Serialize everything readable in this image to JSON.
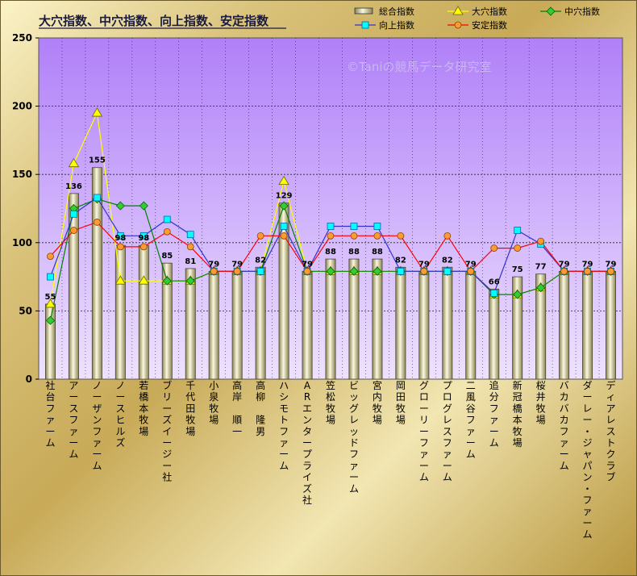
{
  "chart_data": {
    "type": "bar",
    "title": "大穴指数、中穴指数、向上指数、安定指数",
    "watermark": "©Taniの競馬データ研究室",
    "ylim": [
      0,
      250
    ],
    "yticks": [
      0,
      50,
      100,
      150,
      200,
      250
    ],
    "grid": true,
    "legend_position": "top-right",
    "categories": [
      "社台ファーム",
      "アースファーム",
      "ノーザンファーム",
      "ノースヒルズ",
      "若橋本牧場",
      "ブリーズイージー社",
      "千代田牧場",
      "小泉牧場",
      "高岸　順一",
      "高柳　隆男",
      "ハシモトファーム",
      "ARエンタープライズ社",
      "笠松牧場",
      "ビッグレッドファーム",
      "宮内牧場",
      "岡田牧場",
      "グローリーファーム",
      "プログレスファーム",
      "二風谷ファーム",
      "追分ファーム",
      "新冠橋本牧場",
      "桜井牧場",
      "バカバカファーム",
      "ダーレー・ジャパン・ファーム",
      "ディアレストクラブ"
    ],
    "series": [
      {
        "name": "総合指数",
        "kind": "bar",
        "color": "#e8e4b8",
        "values": [
          55,
          136,
          155,
          98,
          98,
          85,
          81,
          79,
          79,
          82,
          129,
          79,
          88,
          88,
          88,
          82,
          79,
          82,
          79,
          66,
          75,
          77,
          79,
          79,
          79
        ]
      },
      {
        "name": "大穴指数",
        "kind": "line",
        "marker": "triangle",
        "color": "#ffff00",
        "values": [
          55,
          158,
          195,
          72,
          72,
          72,
          72,
          79,
          79,
          79,
          145,
          79,
          79,
          79,
          79,
          79,
          79,
          79,
          79,
          62,
          62,
          67,
          79,
          79,
          79
        ]
      },
      {
        "name": "中穴指数",
        "kind": "line",
        "marker": "diamond",
        "color": "#008000",
        "values": [
          43,
          125,
          132,
          127,
          127,
          72,
          72,
          79,
          79,
          79,
          127,
          79,
          79,
          79,
          79,
          79,
          79,
          79,
          79,
          62,
          62,
          67,
          79,
          79,
          79
        ]
      },
      {
        "name": "向上指数",
        "kind": "line",
        "marker": "square",
        "color": "#000080",
        "values": [
          75,
          121,
          133,
          105,
          105,
          117,
          106,
          79,
          79,
          79,
          112,
          79,
          112,
          112,
          112,
          79,
          79,
          79,
          79,
          63,
          109,
          99,
          79,
          79,
          79
        ]
      },
      {
        "name": "安定指数",
        "kind": "line",
        "marker": "circle",
        "color": "#ff0000",
        "values": [
          90,
          109,
          115,
          97,
          97,
          108,
          97,
          79,
          79,
          105,
          105,
          79,
          105,
          105,
          105,
          105,
          79,
          105,
          79,
          96,
          96,
          101,
          79,
          79,
          79
        ]
      }
    ],
    "data_labels": [
      55,
      136,
      155,
      98,
      98,
      85,
      81,
      79,
      79,
      82,
      129,
      79,
      88,
      88,
      88,
      82,
      79,
      82,
      79,
      66,
      75,
      77,
      79,
      79,
      79
    ],
    "colors": {
      "plot_bg_top": "#b080f8",
      "plot_bg_bottom": "#eee2ff",
      "triangle_fill": "#ffff00",
      "diamond_fill": "#33cc33",
      "square_fill": "#00ffff",
      "circle_fill": "#ff9933",
      "blue_line": "#3333cc"
    }
  }
}
